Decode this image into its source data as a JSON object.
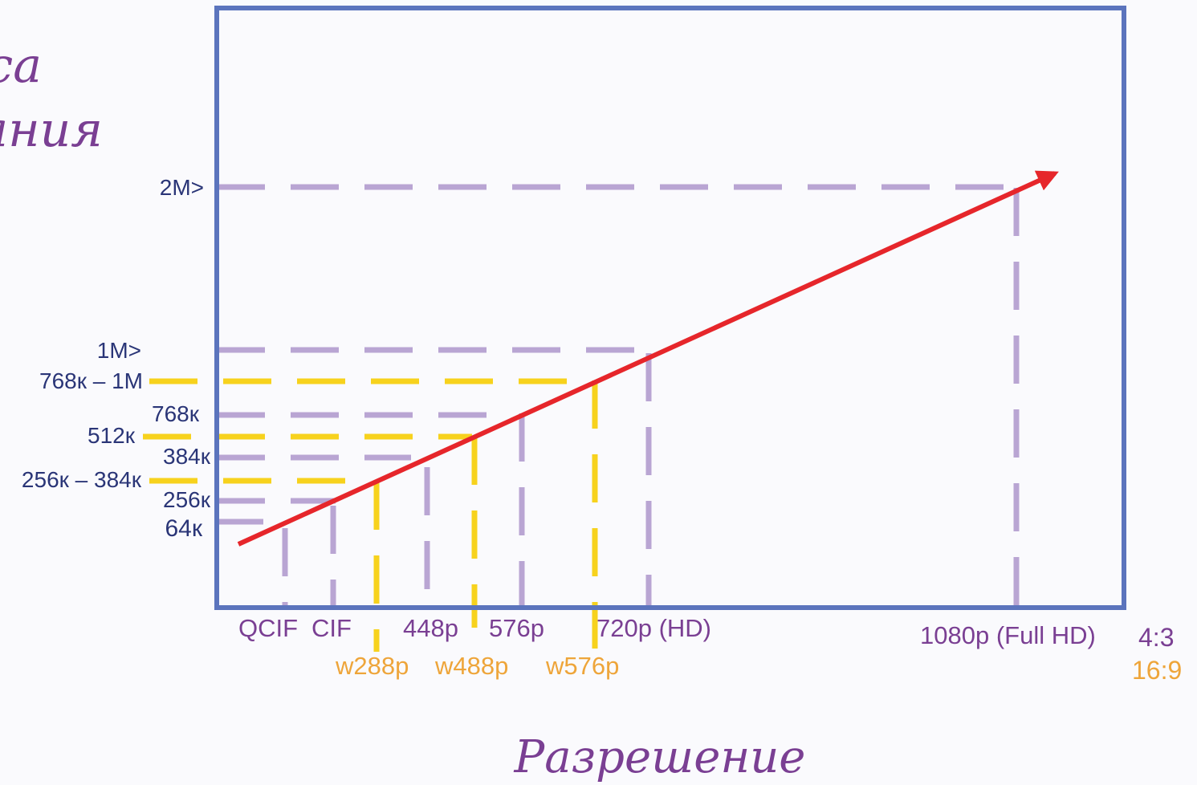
{
  "chart_data": {
    "type": "line",
    "title": "",
    "ylabel_fragments": [
      "са",
      "ания"
    ],
    "xlabel": "Разрешение",
    "colors": {
      "frame": "#5b74bd",
      "lavender": "#b9a5d3",
      "yellow": "#f7d21d",
      "trend": "#e6262b",
      "ytick_text": "#2a3577",
      "xtick_purple": "#7a3f93",
      "xtick_orange": "#eea53a",
      "axis_title": "#7a3f93"
    },
    "y_ticks_4_3": [
      "64к",
      "256к",
      "384к",
      "768к",
      "1М>",
      "2М>"
    ],
    "y_ticks_16_9": [
      "256к – 384к",
      "512к",
      "768к – 1М"
    ],
    "x_ticks_4_3": [
      "QCIF",
      "CIF",
      "448p",
      "576p",
      "720p (HD)",
      "1080p (Full HD)"
    ],
    "x_ticks_16_9": [
      "w288p",
      "w488p",
      "w576p"
    ],
    "legend": [
      {
        "label": "4:3",
        "color": "#7a3f93"
      },
      {
        "label": "16:9",
        "color": "#eea53a"
      }
    ],
    "series": [
      {
        "name": "4:3",
        "points": [
          {
            "x": "QCIF",
            "y": "64к"
          },
          {
            "x": "CIF",
            "y": "256к"
          },
          {
            "x": "448p",
            "y": "384к"
          },
          {
            "x": "576p",
            "y": "768к"
          },
          {
            "x": "720p (HD)",
            "y": "1М>"
          },
          {
            "x": "1080p (Full HD)",
            "y": "2М>"
          }
        ]
      },
      {
        "name": "16:9",
        "points": [
          {
            "x": "w288p",
            "y": "256к – 384к"
          },
          {
            "x": "w488p",
            "y": "512к"
          },
          {
            "x": "w576p",
            "y": "768к – 1М"
          }
        ]
      }
    ],
    "trend": "increasing",
    "grid": false
  }
}
